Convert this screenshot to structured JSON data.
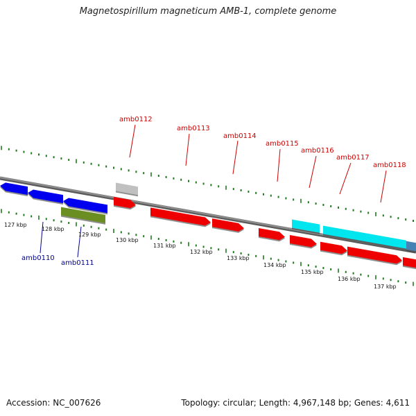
{
  "title": "Magnetospirillum magneticum AMB-1, complete genome",
  "footer": {
    "accession": "Accession: NC_007626",
    "stats": "Topology: circular; Length: 4,967,148 bp; Genes: 4,611"
  },
  "colors": {
    "backbone": "#8c8c8c",
    "ticks": "#1f7a1f",
    "label_forward": "#cc0000",
    "label_reverse": "#00008b"
  },
  "tick_labels": [
    "127 kbp",
    "128 kbp",
    "129 kbp",
    "130 kbp",
    "131 kbp",
    "132 kbp",
    "133 kbp",
    "134 kbp",
    "135 kbp",
    "136 kbp",
    "137 kbp"
  ],
  "gene_labels": [
    {
      "name": "amb0110",
      "strand": "reverse"
    },
    {
      "name": "amb0111",
      "strand": "reverse"
    },
    {
      "name": "amb0112",
      "strand": "forward"
    },
    {
      "name": "amb0113",
      "strand": "forward"
    },
    {
      "name": "amb0114",
      "strand": "forward"
    },
    {
      "name": "amb0115",
      "strand": "forward"
    },
    {
      "name": "amb0116",
      "strand": "forward"
    },
    {
      "name": "amb0117",
      "strand": "forward"
    },
    {
      "name": "amb0118",
      "strand": "forward"
    }
  ],
  "features": [
    {
      "type": "gene-reverse",
      "color": "#0000ee",
      "strand": "reverse"
    },
    {
      "type": "gene-reverse",
      "color": "#0000ee",
      "strand": "reverse"
    },
    {
      "type": "gene-reverse",
      "color": "#0000ee",
      "strand": "reverse"
    },
    {
      "type": "rna",
      "color": "#6b8e23",
      "strand": "reverse"
    },
    {
      "type": "misc",
      "color": "#c0c0c0",
      "strand": "forward"
    },
    {
      "type": "gene-forward",
      "color": "#ee0000",
      "strand": "forward"
    },
    {
      "type": "gene-forward",
      "color": "#ee0000",
      "strand": "forward"
    },
    {
      "type": "gene-forward",
      "color": "#ee0000",
      "strand": "forward"
    },
    {
      "type": "gene-forward",
      "color": "#ee0000",
      "strand": "forward"
    },
    {
      "type": "gene-forward",
      "color": "#ee0000",
      "strand": "forward"
    },
    {
      "type": "gene-forward",
      "color": "#ee0000",
      "strand": "forward"
    },
    {
      "type": "gene-forward",
      "color": "#ee0000",
      "strand": "forward"
    },
    {
      "type": "gene-forward",
      "color": "#ee0000",
      "strand": "forward"
    },
    {
      "type": "cds",
      "color": "#00e5ee",
      "strand": "forward"
    },
    {
      "type": "cds",
      "color": "#00e5ee",
      "strand": "forward"
    },
    {
      "type": "cds",
      "color": "#4682b4",
      "strand": "forward"
    }
  ]
}
